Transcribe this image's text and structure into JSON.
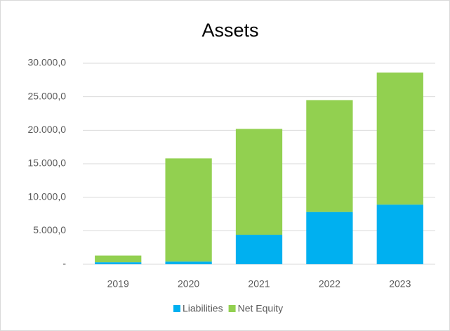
{
  "chart_data": {
    "type": "stacked_bar",
    "title": "Assets",
    "categories": [
      "2019",
      "2020",
      "2021",
      "2022",
      "2023"
    ],
    "series": [
      {
        "name": "Liabilities",
        "color": "#00b0f0",
        "values": [
          300,
          400,
          4400,
          7800,
          8900
        ]
      },
      {
        "name": "Net Equity",
        "color": "#92d050",
        "values": [
          1000,
          15400,
          15800,
          16700,
          19700
        ]
      }
    ],
    "ylim": [
      0,
      30000
    ],
    "yticks": [
      {
        "value": 0,
        "label": "-"
      },
      {
        "value": 5000,
        "label": "5.000,0"
      },
      {
        "value": 10000,
        "label": "10.000,0"
      },
      {
        "value": 15000,
        "label": "15.000,0"
      },
      {
        "value": 20000,
        "label": "20.000,0"
      },
      {
        "value": 25000,
        "label": "25.000,0"
      },
      {
        "value": 30000,
        "label": "30.000,0"
      }
    ],
    "grid": true,
    "legend": "bottom"
  }
}
